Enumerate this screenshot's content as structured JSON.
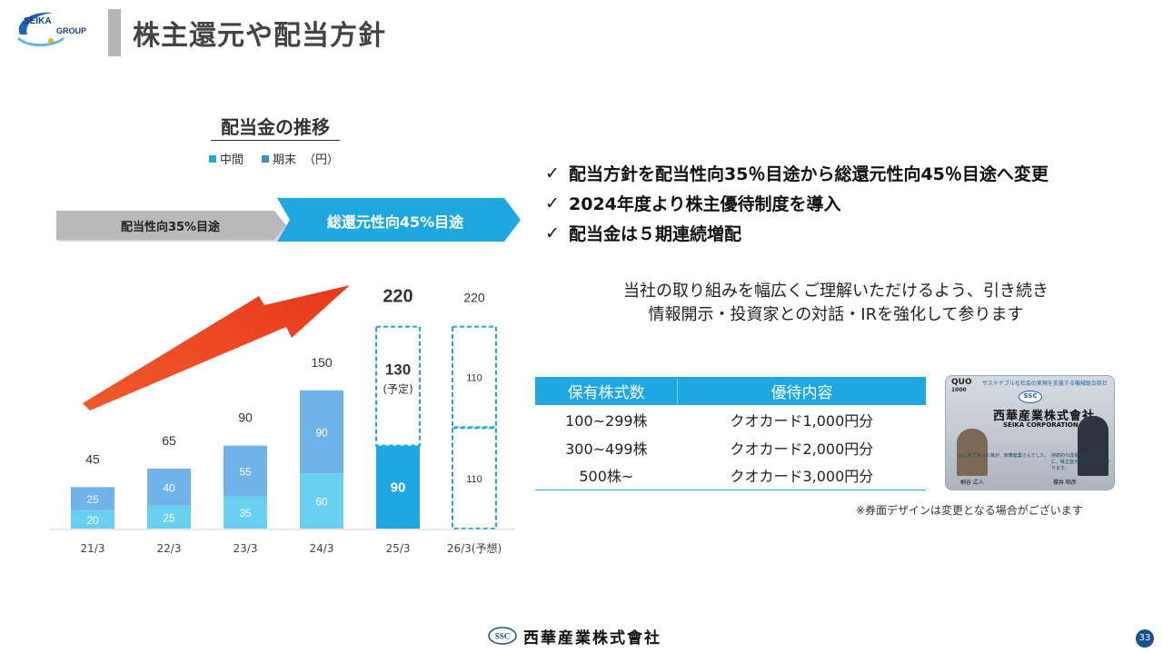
{
  "header": {
    "logo_text_line1": "SEIKA",
    "logo_text_line2": "GROUP",
    "title": "株主還元や配当方針"
  },
  "colors": {
    "interim": "#6ad0f2",
    "year_end": "#3a8fd1",
    "forecast": "#1fa8e0",
    "accent_blue": "#1fa8e0",
    "arrow_red": "#ee4422",
    "grey": "#b5b5b5"
  },
  "chart": {
    "title": "配当金の推移",
    "legend_interim": "中間",
    "legend_year_end": "期末",
    "unit": "（円）",
    "policy_old": "配当性向35%目途",
    "policy_new": "総還元性向45%目途"
  },
  "chart_data": {
    "type": "bar",
    "stacked": true,
    "categories": [
      "21/3",
      "22/3",
      "23/3",
      "24/3",
      "25/3",
      "26/3(予想)"
    ],
    "series": [
      {
        "name": "中間",
        "values": [
          20,
          25,
          35,
          60,
          90,
          110
        ]
      },
      {
        "name": "期末",
        "values": [
          25,
          40,
          55,
          90,
          130,
          110
        ]
      }
    ],
    "totals": [
      45,
      65,
      90,
      150,
      220,
      220
    ],
    "annotations": {
      "planned_label": "(予定)"
    },
    "ylim": [
      0,
      230
    ]
  },
  "bullets": [
    "配当方針を配当性向35％目途から総還元性向45％目途へ変更",
    "2024年度より株主優待制度を導入",
    "配当金は５期連続増配"
  ],
  "bullet_mark": "✓",
  "ir_message": {
    "line1": "当社の取り組みを幅広くご理解いただけるよう、引き続き",
    "line2": "情報開示・投資家との対話・IRを強化して参ります"
  },
  "benefit_table": {
    "headers": [
      "保有株式数",
      "優待内容"
    ],
    "rows": [
      [
        "100~299株",
        "クオカード1,000円分"
      ],
      [
        "300~499株",
        "クオカード2,000円分"
      ],
      [
        "500株~",
        "クオカード3,000円分"
      ]
    ]
  },
  "quo_card": {
    "brand": "QUO",
    "value": "1000",
    "banner": "サステナブルな社会の実現を支援する機械総合商社",
    "ssc": "SSC",
    "company_jp": "西華産業株式會社",
    "company_en": "SEIKA CORPORATION",
    "note_left": "はじめて買った株が、西華産業さんでした。",
    "note_right": "持続的な成長を図るとともに、株主還元を強化してまいります。",
    "name_left": "桐谷 広人",
    "name_right": "櫻井 昭彦"
  },
  "card_note": "※券面デザインは変更となる場合がございます",
  "footer": {
    "ssc": "SSC",
    "company": "西華産業株式會社",
    "page": "33"
  }
}
